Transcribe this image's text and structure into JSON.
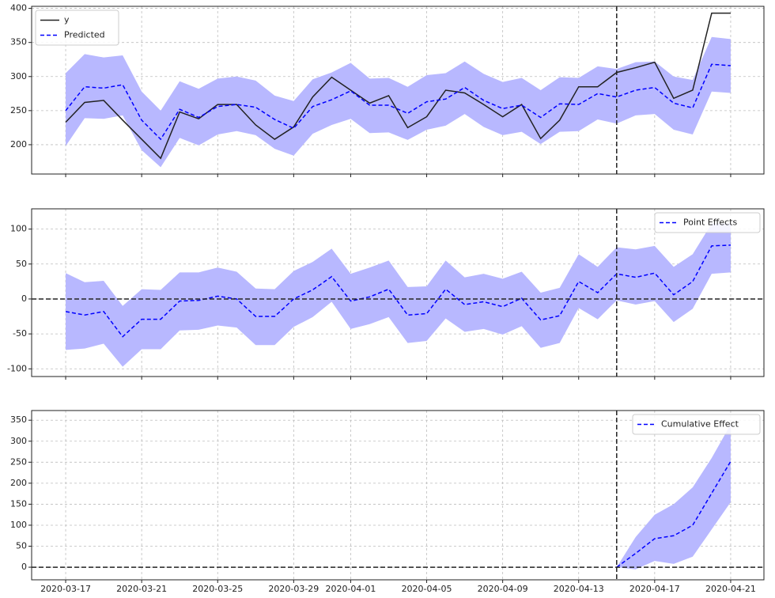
{
  "chart_data": [
    {
      "type": "line",
      "x": [
        "2020-03-17",
        "2020-03-18",
        "2020-03-19",
        "2020-03-20",
        "2020-03-21",
        "2020-03-22",
        "2020-03-23",
        "2020-03-24",
        "2020-03-25",
        "2020-03-26",
        "2020-03-27",
        "2020-03-28",
        "2020-03-29",
        "2020-03-30",
        "2020-03-31",
        "2020-04-01",
        "2020-04-02",
        "2020-04-03",
        "2020-04-04",
        "2020-04-05",
        "2020-04-06",
        "2020-04-07",
        "2020-04-08",
        "2020-04-09",
        "2020-04-10",
        "2020-04-11",
        "2020-04-12",
        "2020-04-13",
        "2020-04-14",
        "2020-04-15",
        "2020-04-16",
        "2020-04-17",
        "2020-04-18",
        "2020-04-19",
        "2020-04-20",
        "2020-04-21"
      ],
      "xlim": [
        "2020-03-15T05:00Z",
        "2020-04-22T18:00Z"
      ],
      "xticks": [
        "2020-03-17",
        "2020-03-21",
        "2020-03-25",
        "2020-03-29",
        "2020-04-01",
        "2020-04-05",
        "2020-04-09",
        "2020-04-13",
        "2020-04-17",
        "2020-04-21"
      ],
      "show_xticklabels": false,
      "ylim": [
        157,
        403
      ],
      "yticks": [
        200,
        250,
        300,
        350,
        400
      ],
      "grid": true,
      "vline": "2020-04-15",
      "legend": "upper left",
      "series": [
        {
          "name": "y",
          "color": "#222222",
          "linestyle": "solid",
          "values": [
            233,
            262,
            265,
            236,
            208,
            180,
            248,
            238,
            259,
            259,
            229,
            208,
            226,
            270,
            299,
            280,
            261,
            272,
            225,
            241,
            280,
            276,
            259,
            241,
            259,
            209,
            236,
            285,
            285,
            306,
            313,
            321,
            268,
            280,
            393,
            393
          ]
        },
        {
          "name": "Predicted",
          "color": "#0000ff",
          "linestyle": "dashed",
          "values": [
            250,
            285,
            283,
            288,
            236,
            208,
            252,
            240,
            256,
            259,
            255,
            237,
            224,
            256,
            266,
            279,
            258,
            258,
            246,
            263,
            267,
            284,
            265,
            253,
            258,
            240,
            260,
            259,
            275,
            270,
            280,
            284,
            261,
            254,
            318,
            316
          ],
          "interval": {
            "color": "#b8b8ff",
            "lower": [
              198,
              239,
              238,
              243,
              192,
              167,
              210,
              199,
              215,
              220,
              214,
              194,
              184,
              216,
              229,
              238,
              217,
              218,
              207,
              222,
              228,
              245,
              226,
              214,
              219,
              201,
              219,
              220,
              237,
              231,
              243,
              245,
              222,
              215,
              278,
              276
            ],
            "upper": [
              305,
              333,
              328,
              331,
              278,
              250,
              293,
              282,
              297,
              300,
              294,
              272,
              264,
              296,
              306,
              320,
              297,
              298,
              285,
              302,
              305,
              322,
              304,
              292,
              298,
              280,
              299,
              298,
              315,
              311,
              321,
              322,
              300,
              295,
              358,
              355
            ]
          }
        }
      ]
    },
    {
      "type": "line",
      "x": [
        "2020-03-17",
        "2020-03-18",
        "2020-03-19",
        "2020-03-20",
        "2020-03-21",
        "2020-03-22",
        "2020-03-23",
        "2020-03-24",
        "2020-03-25",
        "2020-03-26",
        "2020-03-27",
        "2020-03-28",
        "2020-03-29",
        "2020-03-30",
        "2020-03-31",
        "2020-04-01",
        "2020-04-02",
        "2020-04-03",
        "2020-04-04",
        "2020-04-05",
        "2020-04-06",
        "2020-04-07",
        "2020-04-08",
        "2020-04-09",
        "2020-04-10",
        "2020-04-11",
        "2020-04-12",
        "2020-04-13",
        "2020-04-14",
        "2020-04-15",
        "2020-04-16",
        "2020-04-17",
        "2020-04-18",
        "2020-04-19",
        "2020-04-20",
        "2020-04-21"
      ],
      "xlim": [
        "2020-03-15T05:00Z",
        "2020-04-22T18:00Z"
      ],
      "xticks": [
        "2020-03-17",
        "2020-03-21",
        "2020-03-25",
        "2020-03-29",
        "2020-04-01",
        "2020-04-05",
        "2020-04-09",
        "2020-04-13",
        "2020-04-17",
        "2020-04-21"
      ],
      "show_xticklabels": false,
      "ylim": [
        -111,
        129
      ],
      "yticks": [
        -100,
        -50,
        0,
        50,
        100
      ],
      "grid": true,
      "vline": "2020-04-15",
      "hline": 0,
      "legend": "upper right",
      "series": [
        {
          "name": "Point Effects",
          "color": "#0000ff",
          "linestyle": "dashed",
          "values": [
            -18,
            -23,
            -18,
            -54,
            -29,
            -29,
            -3,
            -2,
            4,
            0,
            -25,
            -25,
            0,
            13,
            32,
            -3,
            3,
            14,
            -23,
            -21,
            14,
            -8,
            -4,
            -11,
            1,
            -30,
            -24,
            25,
            9,
            36,
            31,
            37,
            6,
            25,
            76,
            77
          ],
          "interval": {
            "color": "#b8b8ff",
            "lower": [
              -73,
              -71,
              -64,
              -97,
              -72,
              -72,
              -45,
              -44,
              -38,
              -41,
              -66,
              -66,
              -40,
              -26,
              -4,
              -43,
              -36,
              -26,
              -63,
              -60,
              -28,
              -47,
              -43,
              -51,
              -39,
              -70,
              -63,
              -13,
              -29,
              -2,
              -8,
              -3,
              -33,
              -14,
              36,
              38
            ],
            "upper": [
              37,
              24,
              26,
              -10,
              14,
              13,
              38,
              38,
              45,
              39,
              15,
              14,
              40,
              53,
              72,
              36,
              45,
              55,
              17,
              18,
              55,
              31,
              36,
              29,
              39,
              9,
              16,
              64,
              46,
              74,
              71,
              76,
              46,
              64,
              108,
              108
            ]
          }
        }
      ]
    },
    {
      "type": "line",
      "x": [
        "2020-03-17",
        "2020-03-18",
        "2020-03-19",
        "2020-03-20",
        "2020-03-21",
        "2020-03-22",
        "2020-03-23",
        "2020-03-24",
        "2020-03-25",
        "2020-03-26",
        "2020-03-27",
        "2020-03-28",
        "2020-03-29",
        "2020-03-30",
        "2020-03-31",
        "2020-04-01",
        "2020-04-02",
        "2020-04-03",
        "2020-04-04",
        "2020-04-05",
        "2020-04-06",
        "2020-04-07",
        "2020-04-08",
        "2020-04-09",
        "2020-04-10",
        "2020-04-11",
        "2020-04-12",
        "2020-04-13",
        "2020-04-14",
        "2020-04-15",
        "2020-04-16",
        "2020-04-17",
        "2020-04-18",
        "2020-04-19",
        "2020-04-20",
        "2020-04-21"
      ],
      "xlim": [
        "2020-03-15T05:00Z",
        "2020-04-22T18:00Z"
      ],
      "xticks": [
        "2020-03-17",
        "2020-03-21",
        "2020-03-25",
        "2020-03-29",
        "2020-04-01",
        "2020-04-05",
        "2020-04-09",
        "2020-04-13",
        "2020-04-17",
        "2020-04-21"
      ],
      "show_xticklabels": true,
      "ylim": [
        -30,
        373
      ],
      "yticks": [
        0,
        50,
        100,
        150,
        200,
        250,
        300,
        350
      ],
      "grid": true,
      "vline": "2020-04-15",
      "hline": 0,
      "legend": "upper right",
      "series": [
        {
          "name": "Cumulative Effect",
          "color": "#0000ff",
          "linestyle": "dashed",
          "values": [
            null,
            null,
            null,
            null,
            null,
            null,
            null,
            null,
            null,
            null,
            null,
            null,
            null,
            null,
            null,
            null,
            null,
            null,
            null,
            null,
            null,
            null,
            null,
            null,
            null,
            null,
            null,
            null,
            null,
            0,
            33,
            68,
            75,
            100,
            176,
            252
          ],
          "interval": {
            "color": "#b8b8ff",
            "lower": [
              null,
              null,
              null,
              null,
              null,
              null,
              null,
              null,
              null,
              null,
              null,
              null,
              null,
              null,
              null,
              null,
              null,
              null,
              null,
              null,
              null,
              null,
              null,
              null,
              null,
              null,
              null,
              null,
              null,
              0,
              -5,
              15,
              8,
              25,
              90,
              155
            ],
            "upper": [
              null,
              null,
              null,
              null,
              null,
              null,
              null,
              null,
              null,
              null,
              null,
              null,
              null,
              null,
              null,
              null,
              null,
              null,
              null,
              null,
              null,
              null,
              null,
              null,
              null,
              null,
              null,
              null,
              null,
              0,
              72,
              125,
              150,
              190,
              260,
              340
            ]
          }
        }
      ]
    }
  ]
}
